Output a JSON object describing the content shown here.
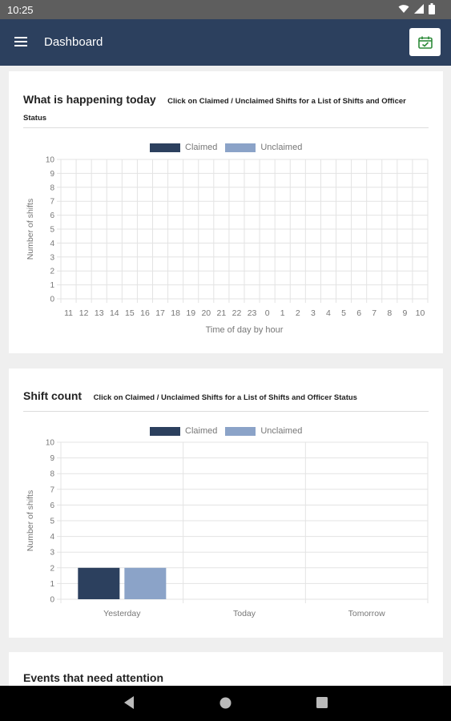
{
  "status_bar": {
    "time": "10:25"
  },
  "app_bar": {
    "title": "Dashboard",
    "action_icon": "calendar-icon"
  },
  "cards": {
    "today": {
      "title": "What is happening today",
      "subtitle": "Click on Claimed / Unclaimed Shifts for a List of Shifts and Officer Status"
    },
    "shift_count": {
      "title": "Shift count",
      "subtitle": "Click on Claimed / Unclaimed Shifts for a List of Shifts and Officer Status"
    },
    "events": {
      "title": "Events that need attention"
    }
  },
  "chart_data": [
    {
      "type": "bar",
      "xlabel": "Time of day by hour",
      "ylabel": "Number of shifts",
      "ylim": [
        0,
        10
      ],
      "yticks": [
        0,
        1,
        2,
        3,
        4,
        5,
        6,
        7,
        8,
        9,
        10
      ],
      "categories": [
        "11",
        "12",
        "13",
        "14",
        "15",
        "16",
        "17",
        "18",
        "19",
        "20",
        "21",
        "22",
        "23",
        "0",
        "1",
        "2",
        "3",
        "4",
        "5",
        "6",
        "7",
        "8",
        "9",
        "10"
      ],
      "series": [
        {
          "name": "Claimed",
          "color": "#2c405e",
          "values": [
            0,
            0,
            0,
            0,
            0,
            0,
            0,
            0,
            0,
            0,
            0,
            0,
            0,
            0,
            0,
            0,
            0,
            0,
            0,
            0,
            0,
            0,
            0,
            0
          ]
        },
        {
          "name": "Unclaimed",
          "color": "#8ba3c8",
          "values": [
            0,
            0,
            0,
            0,
            0,
            0,
            0,
            0,
            0,
            0,
            0,
            0,
            0,
            0,
            0,
            0,
            0,
            0,
            0,
            0,
            0,
            0,
            0,
            0
          ]
        }
      ],
      "grid": true,
      "legend": "top"
    },
    {
      "type": "bar",
      "ylabel": "Number of shifts",
      "ylim": [
        0,
        10
      ],
      "yticks": [
        0,
        1,
        2,
        3,
        4,
        5,
        6,
        7,
        8,
        9,
        10
      ],
      "categories": [
        "Yesterday",
        "Today",
        "Tomorrow"
      ],
      "series": [
        {
          "name": "Claimed",
          "color": "#2c405e",
          "values": [
            2,
            0,
            0
          ]
        },
        {
          "name": "Unclaimed",
          "color": "#8ba3c8",
          "values": [
            2,
            0,
            0
          ]
        }
      ],
      "grid": true,
      "legend": "top"
    }
  ]
}
